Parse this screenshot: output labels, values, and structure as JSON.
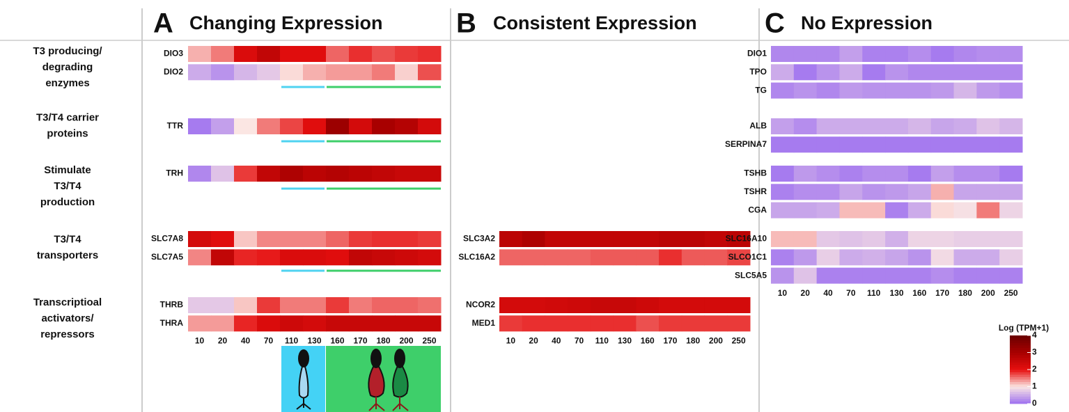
{
  "row_groups": [
    [
      "T3 producing/",
      "degrading",
      "enzymes"
    ],
    [
      "T3/T4 carrier",
      "proteins"
    ],
    [
      "Stimulate",
      "T3/T4",
      "production"
    ],
    [
      "T3/T4",
      "transporters"
    ],
    [
      "Transcriptioal",
      "activators/",
      "repressors"
    ]
  ],
  "colorbar": {
    "label": "Log (TPM+1)",
    "zlim": [
      0,
      4
    ],
    "zticks": [
      0,
      1,
      2,
      3,
      4
    ],
    "colors": [
      "#9d6ff0",
      "#fbe6e3",
      "#e60f0f",
      "#a80000",
      "#6a0000"
    ]
  },
  "chart_data": [
    {
      "type": "heatmap",
      "label": "A",
      "title": "Changing Expression",
      "categories": [
        "10",
        "20",
        "40",
        "70",
        "110",
        "130",
        "160",
        "170",
        "180",
        "200",
        "250"
      ],
      "groups": [
        {
          "genes": [
            "DIO3",
            "DIO2"
          ],
          "values": [
            [
              1.25,
              1.5,
              2.2,
              2.6,
              2.1,
              2.1,
              1.6,
              1.85,
              1.7,
              1.8,
              1.85
            ],
            [
              0.5,
              0.3,
              0.6,
              0.75,
              1.05,
              1.25,
              1.35,
              1.35,
              1.5,
              1.1,
              1.7
            ]
          ]
        },
        {
          "genes": [
            "TTR"
          ],
          "values": [
            [
              0.1,
              0.4,
              1.0,
              1.5,
              1.75,
              2.1,
              3.2,
              2.3,
              3.0,
              2.8,
              2.3
            ]
          ]
        },
        {
          "genes": [
            "TRH"
          ],
          "values": [
            [
              0.2,
              0.7,
              1.8,
              2.6,
              2.9,
              2.7,
              2.8,
              2.7,
              2.6,
              2.5,
              2.5
            ]
          ]
        },
        {
          "genes": [
            "SLC7A8",
            "SLC7A5"
          ],
          "values": [
            [
              2.3,
              2.1,
              1.15,
              1.45,
              1.45,
              1.45,
              1.6,
              1.8,
              1.85,
              1.85,
              1.8
            ],
            [
              1.45,
              2.6,
              1.9,
              1.95,
              2.2,
              2.2,
              2.1,
              2.6,
              2.5,
              2.4,
              2.3
            ]
          ]
        },
        {
          "genes": [
            "THRB",
            "THRA"
          ],
          "values": [
            [
              0.75,
              0.75,
              1.15,
              1.8,
              1.5,
              1.5,
              1.8,
              1.5,
              1.6,
              1.6,
              1.55
            ],
            [
              1.35,
              1.35,
              1.9,
              2.2,
              2.4,
              2.3,
              2.5,
              2.5,
              2.5,
              2.5,
              2.5
            ]
          ]
        }
      ]
    },
    {
      "type": "heatmap",
      "label": "B",
      "title": "Consistent Expression",
      "categories": [
        "10",
        "20",
        "40",
        "70",
        "110",
        "130",
        "160",
        "170",
        "180",
        "200",
        "250"
      ],
      "groups": [
        {
          "genes": [],
          "values": []
        },
        {
          "genes": [],
          "values": []
        },
        {
          "genes": [],
          "values": []
        },
        {
          "genes": [
            "SLC3A2",
            "SLC16A2"
          ],
          "values": [
            [
              2.7,
              2.9,
              2.6,
              2.6,
              2.6,
              2.6,
              2.6,
              2.7,
              2.7,
              2.6,
              2.7
            ],
            [
              1.6,
              1.6,
              1.6,
              1.6,
              1.65,
              1.65,
              1.65,
              1.85,
              1.65,
              1.65,
              1.75
            ]
          ]
        },
        {
          "genes": [
            "NCOR2",
            "MED1"
          ],
          "values": [
            [
              2.3,
              2.3,
              2.35,
              2.4,
              2.5,
              2.5,
              2.4,
              2.3,
              2.3,
              2.3,
              2.3
            ],
            [
              1.8,
              1.85,
              1.85,
              1.85,
              1.85,
              1.85,
              1.7,
              1.8,
              1.8,
              1.8,
              1.8
            ]
          ]
        }
      ]
    },
    {
      "type": "heatmap",
      "label": "C",
      "title": "No Expression",
      "categories": [
        "10",
        "20",
        "40",
        "70",
        "110",
        "130",
        "160",
        "170",
        "180",
        "200",
        "250"
      ],
      "groups": [
        {
          "genes": [
            "DIO1",
            "TPO",
            "TG"
          ],
          "values": [
            [
              0.2,
              0.2,
              0.2,
              0.4,
              0.15,
              0.15,
              0.25,
              0.1,
              0.2,
              0.25,
              0.25
            ],
            [
              0.5,
              0.1,
              0.3,
              0.5,
              0.1,
              0.3,
              0.2,
              0.2,
              0.2,
              0.2,
              0.2
            ],
            [
              0.2,
              0.3,
              0.2,
              0.35,
              0.3,
              0.3,
              0.3,
              0.35,
              0.6,
              0.35,
              0.25
            ]
          ]
        },
        {
          "genes": [
            "ALB",
            "SERPINA7"
          ],
          "values": [
            [
              0.4,
              0.25,
              0.5,
              0.5,
              0.5,
              0.5,
              0.6,
              0.45,
              0.5,
              0.7,
              0.6
            ],
            [
              0.1,
              0.1,
              0.1,
              0.1,
              0.1,
              0.1,
              0.1,
              0.1,
              0.1,
              0.1,
              0.1
            ]
          ]
        },
        {
          "genes": [
            "TSHB",
            "TSHR",
            "CGA"
          ],
          "values": [
            [
              0.1,
              0.35,
              0.25,
              0.15,
              0.25,
              0.25,
              0.1,
              0.4,
              0.25,
              0.25,
              0.1
            ],
            [
              0.15,
              0.25,
              0.25,
              0.45,
              0.3,
              0.35,
              0.45,
              1.25,
              0.45,
              0.45,
              0.45
            ],
            [
              0.45,
              0.45,
              0.5,
              1.2,
              1.2,
              0.15,
              0.5,
              1.05,
              0.95,
              1.5,
              0.85
            ]
          ]
        },
        {
          "genes": [
            "SLC16A10",
            "SLCO1C1",
            "SLC5A5"
          ],
          "values": [
            [
              1.2,
              1.2,
              0.75,
              0.7,
              0.75,
              0.55,
              0.85,
              0.85,
              0.8,
              0.8,
              0.8
            ],
            [
              0.15,
              0.35,
              0.8,
              0.5,
              0.55,
              0.45,
              0.3,
              0.9,
              0.5,
              0.5,
              0.8
            ],
            [
              0.3,
              0.7,
              0.15,
              0.15,
              0.15,
              0.15,
              0.15,
              0.25,
              0.15,
              0.15,
              0.15
            ]
          ]
        },
        {
          "genes": [],
          "values": []
        }
      ]
    }
  ]
}
